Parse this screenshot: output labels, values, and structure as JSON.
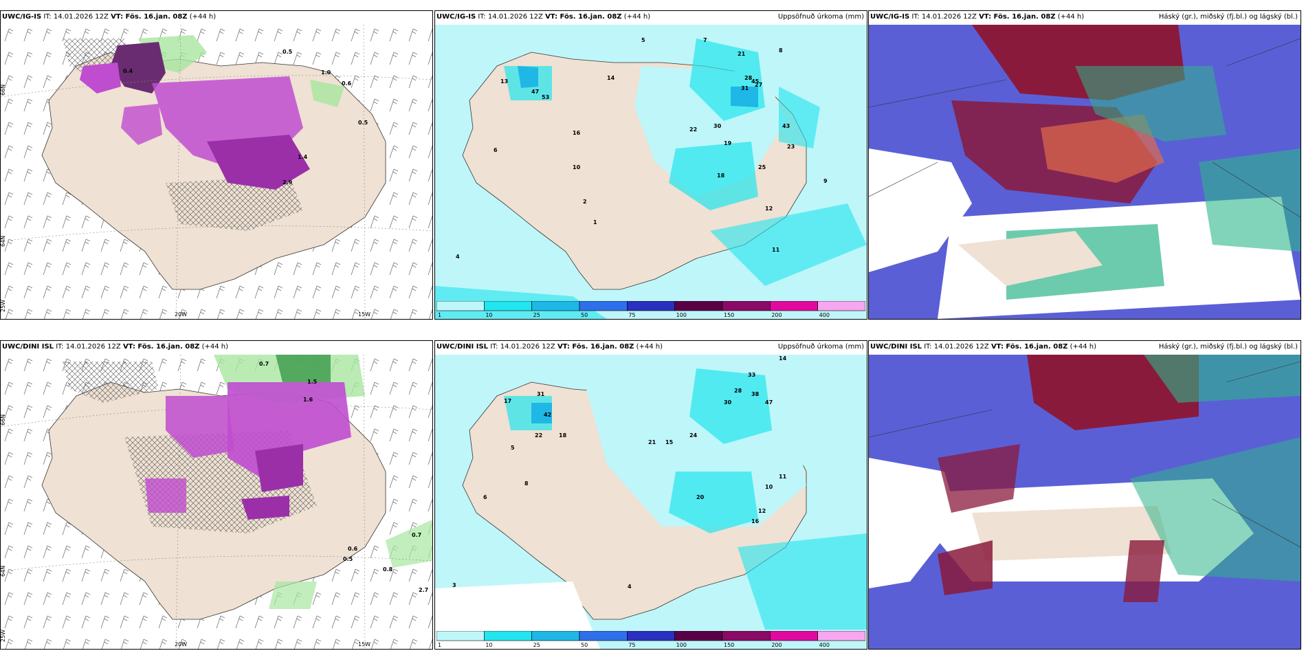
{
  "panels": [
    {
      "model": "UWC/IG-IS",
      "it": "IT: 14.01.2026 12Z",
      "vt": "VT: Fös. 16.jan. 08Z",
      "lead": "(+44 h)",
      "right": ""
    },
    {
      "model": "UWC/IG-IS",
      "it": "IT: 14.01.2026 12Z",
      "vt": "VT: Fös. 16.jan. 08Z",
      "lead": "(+44 h)",
      "right": "Uppsöfnuð úrkoma (mm)"
    },
    {
      "model": "UWC/IG-IS",
      "it": "IT: 14.01.2026 12Z",
      "vt": "VT: Fös. 16.jan. 08Z",
      "lead": "(+44 h)",
      "right": "Háský (gr.), miðský (fj.bl.) og lágský (bl.)"
    },
    {
      "model": "UWC/DINI ISL",
      "it": "IT: 14.01.2026 12Z",
      "vt": "VT: Fös. 16.jan. 08Z",
      "lead": "(+44 h)",
      "right": ""
    },
    {
      "model": "UWC/DINI ISL",
      "it": "IT: 14.01.2026 12Z",
      "vt": "VT: Fös. 16.jan. 08Z",
      "lead": "(+44 h)",
      "right": "Uppsöfnuð úrkoma (mm)"
    },
    {
      "model": "UWC/DINI ISL",
      "it": "IT: 14.01.2026 12Z",
      "vt": "VT: Fös. 16.jan. 08Z",
      "lead": "(+44 h)",
      "right": "Háský (gr.), miðský (fj.bl.) og lágský (bl.)"
    }
  ],
  "grid_labels": {
    "lat66": "66N",
    "lat64": "64N",
    "lon25": "25W",
    "lon20": "20W",
    "lon15": "15W"
  },
  "colorbar": {
    "ticks": [
      "1",
      "10",
      "25",
      "50",
      "75",
      "100",
      "150",
      "200",
      "400"
    ],
    "colors": [
      "#bff6f9",
      "#22e5ee",
      "#1fb7e6",
      "#2f6fe9",
      "#2a2fbf",
      "#5a0046",
      "#8a0a66",
      "#e10aa0",
      "#f7a6f0"
    ]
  },
  "precip_values_top": [
    "5",
    "7",
    "21",
    "13",
    "8",
    "47",
    "53",
    "45",
    "31",
    "14",
    "43",
    "22",
    "30",
    "28",
    "27",
    "12",
    "16",
    "10",
    "11",
    "23",
    "19",
    "25",
    "18",
    "4",
    "6",
    "2",
    "1",
    "9"
  ],
  "precip_values_bottom": [
    "14",
    "33",
    "28",
    "38",
    "47",
    "17",
    "31",
    "42",
    "22",
    "18",
    "30",
    "24",
    "15",
    "21",
    "20",
    "12",
    "16",
    "10",
    "11",
    "8",
    "6",
    "5",
    "3",
    "4"
  ],
  "wind_values_top": [
    "0.5",
    "0.4",
    "1.0",
    "0.6",
    "2.9",
    "1.4",
    "0.5"
  ],
  "wind_values_bottom": [
    "0.7",
    "1.5",
    "1.6",
    "0.6",
    "0.5",
    "0.8",
    "0.7",
    "2.7"
  ],
  "colors": {
    "land": "#efe1d3",
    "sea_precip": "#bff6f9",
    "cloud_blue": "#5b5fd6",
    "cloud_dark": "#8a1a3c",
    "cloud_green": "#2db58a"
  }
}
